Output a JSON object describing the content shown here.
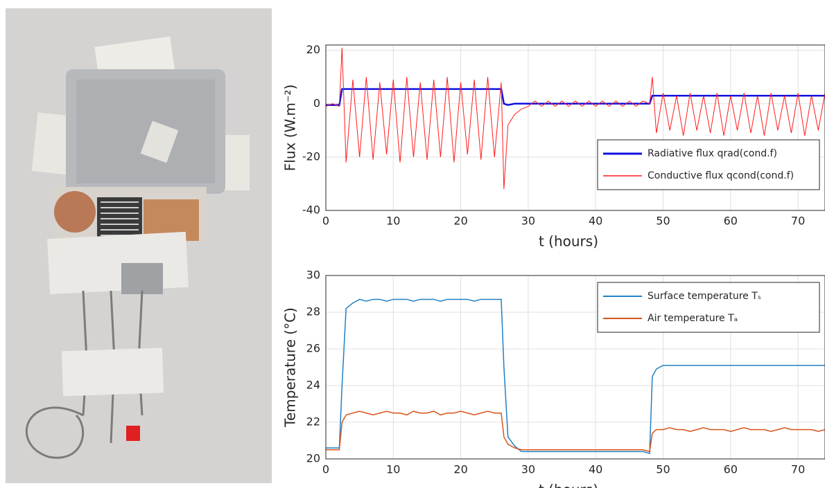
{
  "chart_data": [
    {
      "type": "line",
      "x": [
        0,
        1,
        2,
        2.4,
        3,
        4,
        5,
        6,
        7,
        8,
        9,
        10,
        11,
        12,
        13,
        14,
        15,
        16,
        17,
        18,
        19,
        20,
        21,
        22,
        23,
        24,
        25,
        26,
        26.4,
        27,
        28,
        29,
        30,
        31,
        32,
        33,
        34,
        35,
        36,
        37,
        38,
        39,
        40,
        41,
        42,
        43,
        44,
        45,
        46,
        47,
        48,
        48.4,
        49,
        50,
        51,
        52,
        53,
        54,
        55,
        56,
        57,
        58,
        59,
        60,
        61,
        62,
        63,
        64,
        65,
        66,
        67,
        68,
        69,
        70,
        71,
        72,
        73,
        74
      ],
      "series": [
        {
          "name": "Radiative flux qrad(cond.f)",
          "color": "#1010e0",
          "width": 2.5,
          "values": [
            -0.5,
            -0.5,
            -0.5,
            5.5,
            5.5,
            5.5,
            5.5,
            5.5,
            5.5,
            5.5,
            5.5,
            5.5,
            5.5,
            5.5,
            5.5,
            5.5,
            5.5,
            5.5,
            5.5,
            5.5,
            5.5,
            5.5,
            5.5,
            5.5,
            5.5,
            5.5,
            5.5,
            5.5,
            0,
            -0.5,
            0,
            0,
            0,
            0,
            0,
            0,
            0,
            0,
            0,
            0,
            0,
            0,
            0,
            0,
            0,
            0,
            0,
            0,
            0,
            0,
            0,
            3,
            3,
            3,
            3,
            3,
            3,
            3,
            3,
            3,
            3,
            3,
            3,
            3,
            3,
            3,
            3,
            3,
            3,
            3,
            3,
            3,
            3,
            3,
            3,
            3,
            3,
            3
          ]
        },
        {
          "name": "Conductive flux qcond(cond.f)",
          "color": "#ff1a1a",
          "width": 1,
          "values": [
            -1,
            0,
            -1,
            21,
            -22,
            9,
            -20,
            10,
            -21,
            8,
            -19,
            9,
            -22,
            10,
            -20,
            8,
            -21,
            9,
            -20,
            10,
            -22,
            8,
            -19,
            9,
            -21,
            10,
            -20,
            8,
            -32,
            -8,
            -4,
            -2,
            -1,
            1,
            -1,
            1,
            -1,
            1,
            -1,
            1,
            -1,
            1,
            -1,
            1,
            -1,
            1,
            -1,
            1,
            -1,
            1,
            0,
            10,
            -11,
            4,
            -10,
            3,
            -12,
            4,
            -10,
            3,
            -11,
            4,
            -12,
            3,
            -10,
            4,
            -11,
            3,
            -12,
            4,
            -10,
            3,
            -11,
            4,
            -12,
            3,
            -10,
            4
          ]
        }
      ],
      "ylabel": "Flux (W.m⁻²)",
      "xlabel": "t (hours)",
      "xlim": [
        0,
        74
      ],
      "ylim": [
        -40,
        22
      ],
      "xticks": [
        0,
        10,
        20,
        30,
        40,
        50,
        60,
        70
      ],
      "yticks": [
        -40,
        -20,
        0,
        20
      ],
      "grid": true,
      "legend": "lower right"
    },
    {
      "type": "line",
      "x": [
        0,
        1,
        2,
        2.4,
        3,
        4,
        5,
        6,
        7,
        8,
        9,
        10,
        11,
        12,
        13,
        14,
        15,
        16,
        17,
        18,
        19,
        20,
        21,
        22,
        23,
        24,
        25,
        26,
        26.4,
        27,
        28,
        29,
        30,
        31,
        32,
        33,
        34,
        35,
        36,
        37,
        38,
        39,
        40,
        41,
        42,
        43,
        44,
        45,
        46,
        47,
        48,
        48.4,
        49,
        50,
        51,
        52,
        53,
        54,
        55,
        56,
        57,
        58,
        59,
        60,
        61,
        62,
        63,
        64,
        65,
        66,
        67,
        68,
        69,
        70,
        71,
        72,
        73,
        74
      ],
      "series": [
        {
          "name": "Surface temperature Tₛ",
          "color": "#1f7fc4",
          "width": 1.5,
          "values": [
            20.6,
            20.6,
            20.6,
            24,
            28.2,
            28.5,
            28.7,
            28.6,
            28.7,
            28.7,
            28.6,
            28.7,
            28.7,
            28.7,
            28.6,
            28.7,
            28.7,
            28.7,
            28.6,
            28.7,
            28.7,
            28.7,
            28.7,
            28.6,
            28.7,
            28.7,
            28.7,
            28.7,
            25,
            21.2,
            20.7,
            20.4,
            20.4,
            20.4,
            20.4,
            20.4,
            20.4,
            20.4,
            20.4,
            20.4,
            20.4,
            20.4,
            20.4,
            20.4,
            20.4,
            20.4,
            20.4,
            20.4,
            20.4,
            20.4,
            20.3,
            24.5,
            24.9,
            25.1,
            25.1,
            25.1,
            25.1,
            25.1,
            25.1,
            25.1,
            25.1,
            25.1,
            25.1,
            25.1,
            25.1,
            25.1,
            25.1,
            25.1,
            25.1,
            25.1,
            25.1,
            25.1,
            25.1,
            25.1,
            25.1,
            25.1,
            25.1,
            25.1
          ]
        },
        {
          "name": "Air temperature Tₐ",
          "color": "#d95319",
          "width": 1.5,
          "values": [
            20.5,
            20.5,
            20.5,
            22,
            22.4,
            22.5,
            22.6,
            22.5,
            22.4,
            22.5,
            22.6,
            22.5,
            22.5,
            22.4,
            22.6,
            22.5,
            22.5,
            22.6,
            22.4,
            22.5,
            22.5,
            22.6,
            22.5,
            22.4,
            22.5,
            22.6,
            22.5,
            22.5,
            21.2,
            20.8,
            20.6,
            20.5,
            20.5,
            20.5,
            20.5,
            20.5,
            20.5,
            20.5,
            20.5,
            20.5,
            20.5,
            20.5,
            20.5,
            20.5,
            20.5,
            20.5,
            20.5,
            20.5,
            20.5,
            20.5,
            20.4,
            21.4,
            21.6,
            21.6,
            21.7,
            21.6,
            21.6,
            21.5,
            21.6,
            21.7,
            21.6,
            21.6,
            21.6,
            21.5,
            21.6,
            21.7,
            21.6,
            21.6,
            21.6,
            21.5,
            21.6,
            21.7,
            21.6,
            21.6,
            21.6,
            21.6,
            21.5,
            21.6
          ]
        }
      ],
      "ylabel": "Temperature (°C)",
      "xlabel": "t (hours)",
      "xlim": [
        0,
        74
      ],
      "ylim": [
        20,
        30
      ],
      "xticks": [
        0,
        10,
        20,
        30,
        40,
        50,
        60,
        70
      ],
      "yticks": [
        20,
        22,
        24,
        26,
        28,
        30
      ],
      "grid": true,
      "legend": "upper right"
    }
  ]
}
